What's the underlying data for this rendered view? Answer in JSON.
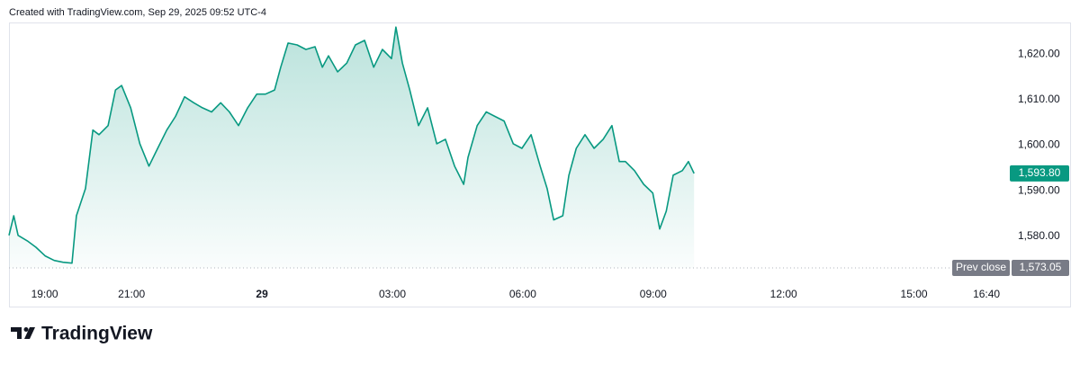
{
  "credit": "Created with TradingView.com, Sep 29, 2025 09:52 UTC-4",
  "brand": "TradingView",
  "chart_data": {
    "type": "area",
    "x": [
      -5.82,
      -5.71,
      -5.61,
      -5.4,
      -5.2,
      -4.99,
      -4.78,
      -4.58,
      -4.37,
      -4.27,
      -4.06,
      -3.89,
      -3.75,
      -3.54,
      -3.37,
      -3.23,
      -3.02,
      -2.81,
      -2.6,
      -2.4,
      -2.19,
      -1.99,
      -1.78,
      -1.57,
      -1.37,
      -1.16,
      -0.95,
      -0.75,
      -0.54,
      -0.33,
      -0.12,
      0.08,
      0.29,
      0.43,
      0.6,
      0.81,
      1.01,
      1.22,
      1.39,
      1.53,
      1.74,
      1.95,
      2.15,
      2.36,
      2.57,
      2.77,
      2.98,
      3.08,
      3.23,
      3.4,
      3.6,
      3.81,
      4.02,
      4.22,
      4.43,
      4.64,
      4.74,
      4.95,
      5.16,
      5.36,
      5.57,
      5.78,
      5.98,
      6.19,
      6.4,
      6.56,
      6.71,
      6.92,
      7.06,
      7.23,
      7.43,
      7.64,
      7.85,
      8.05,
      8.22,
      8.36,
      8.57,
      8.78,
      8.99,
      9.15,
      9.3,
      9.46,
      9.67,
      9.81,
      9.94
    ],
    "series": [
      {
        "color": "#089981",
        "values": [
          1580.2,
          1584.5,
          1580.2,
          1579.0,
          1577.6,
          1575.7,
          1574.7,
          1574.3,
          1574.1,
          1584.5,
          1590.5,
          1603.3,
          1602.3,
          1604.3,
          1612.1,
          1613.1,
          1608.2,
          1600.3,
          1595.4,
          1599.3,
          1603.3,
          1606.3,
          1610.6,
          1609.3,
          1608.2,
          1607.3,
          1609.3,
          1607.3,
          1604.3,
          1608.2,
          1611.2,
          1611.2,
          1612.1,
          1617.1,
          1622.4,
          1622.0,
          1621.0,
          1621.6,
          1617.1,
          1619.6,
          1616.1,
          1618.0,
          1622.0,
          1623.0,
          1617.1,
          1621.0,
          1619.0,
          1625.9,
          1618.0,
          1612.1,
          1604.3,
          1608.2,
          1600.3,
          1601.3,
          1595.4,
          1591.4,
          1597.3,
          1604.3,
          1607.3,
          1606.3,
          1605.3,
          1600.3,
          1599.3,
          1602.3,
          1595.4,
          1590.5,
          1583.6,
          1584.5,
          1593.4,
          1599.3,
          1602.3,
          1599.3,
          1601.3,
          1604.3,
          1596.4,
          1596.4,
          1594.4,
          1591.4,
          1589.5,
          1581.6,
          1585.5,
          1593.4,
          1594.4,
          1596.4,
          1593.8
        ]
      }
    ],
    "xlim": [
      -5.82,
      17.1
    ],
    "ylim": [
      1569.7,
      1628.9
    ],
    "xticks": [
      {
        "value": -5,
        "label": "19:00"
      },
      {
        "value": -3,
        "label": "21:00"
      },
      {
        "value": 0,
        "label": "29"
      },
      {
        "value": 3,
        "label": "03:00"
      },
      {
        "value": 6,
        "label": "06:00"
      },
      {
        "value": 9,
        "label": "09:00"
      },
      {
        "value": 12,
        "label": "12:00"
      },
      {
        "value": 15,
        "label": "15:00"
      },
      {
        "value": 16.667,
        "label": "16:40"
      }
    ],
    "yticks": [
      {
        "value": 1580,
        "label": "1,580.00"
      },
      {
        "value": 1590,
        "label": "1,590.00"
      },
      {
        "value": 1600,
        "label": "1,600.00"
      },
      {
        "value": 1610,
        "label": "1,610.00"
      },
      {
        "value": 1620,
        "label": "1,620.00"
      }
    ],
    "last_price": {
      "value": 1593.8,
      "label": "1,593.80",
      "color": "#089981"
    },
    "prev_close": {
      "name": "Prev close",
      "value": 1573.05,
      "label": "1,573.05",
      "color": "#787b86"
    }
  }
}
